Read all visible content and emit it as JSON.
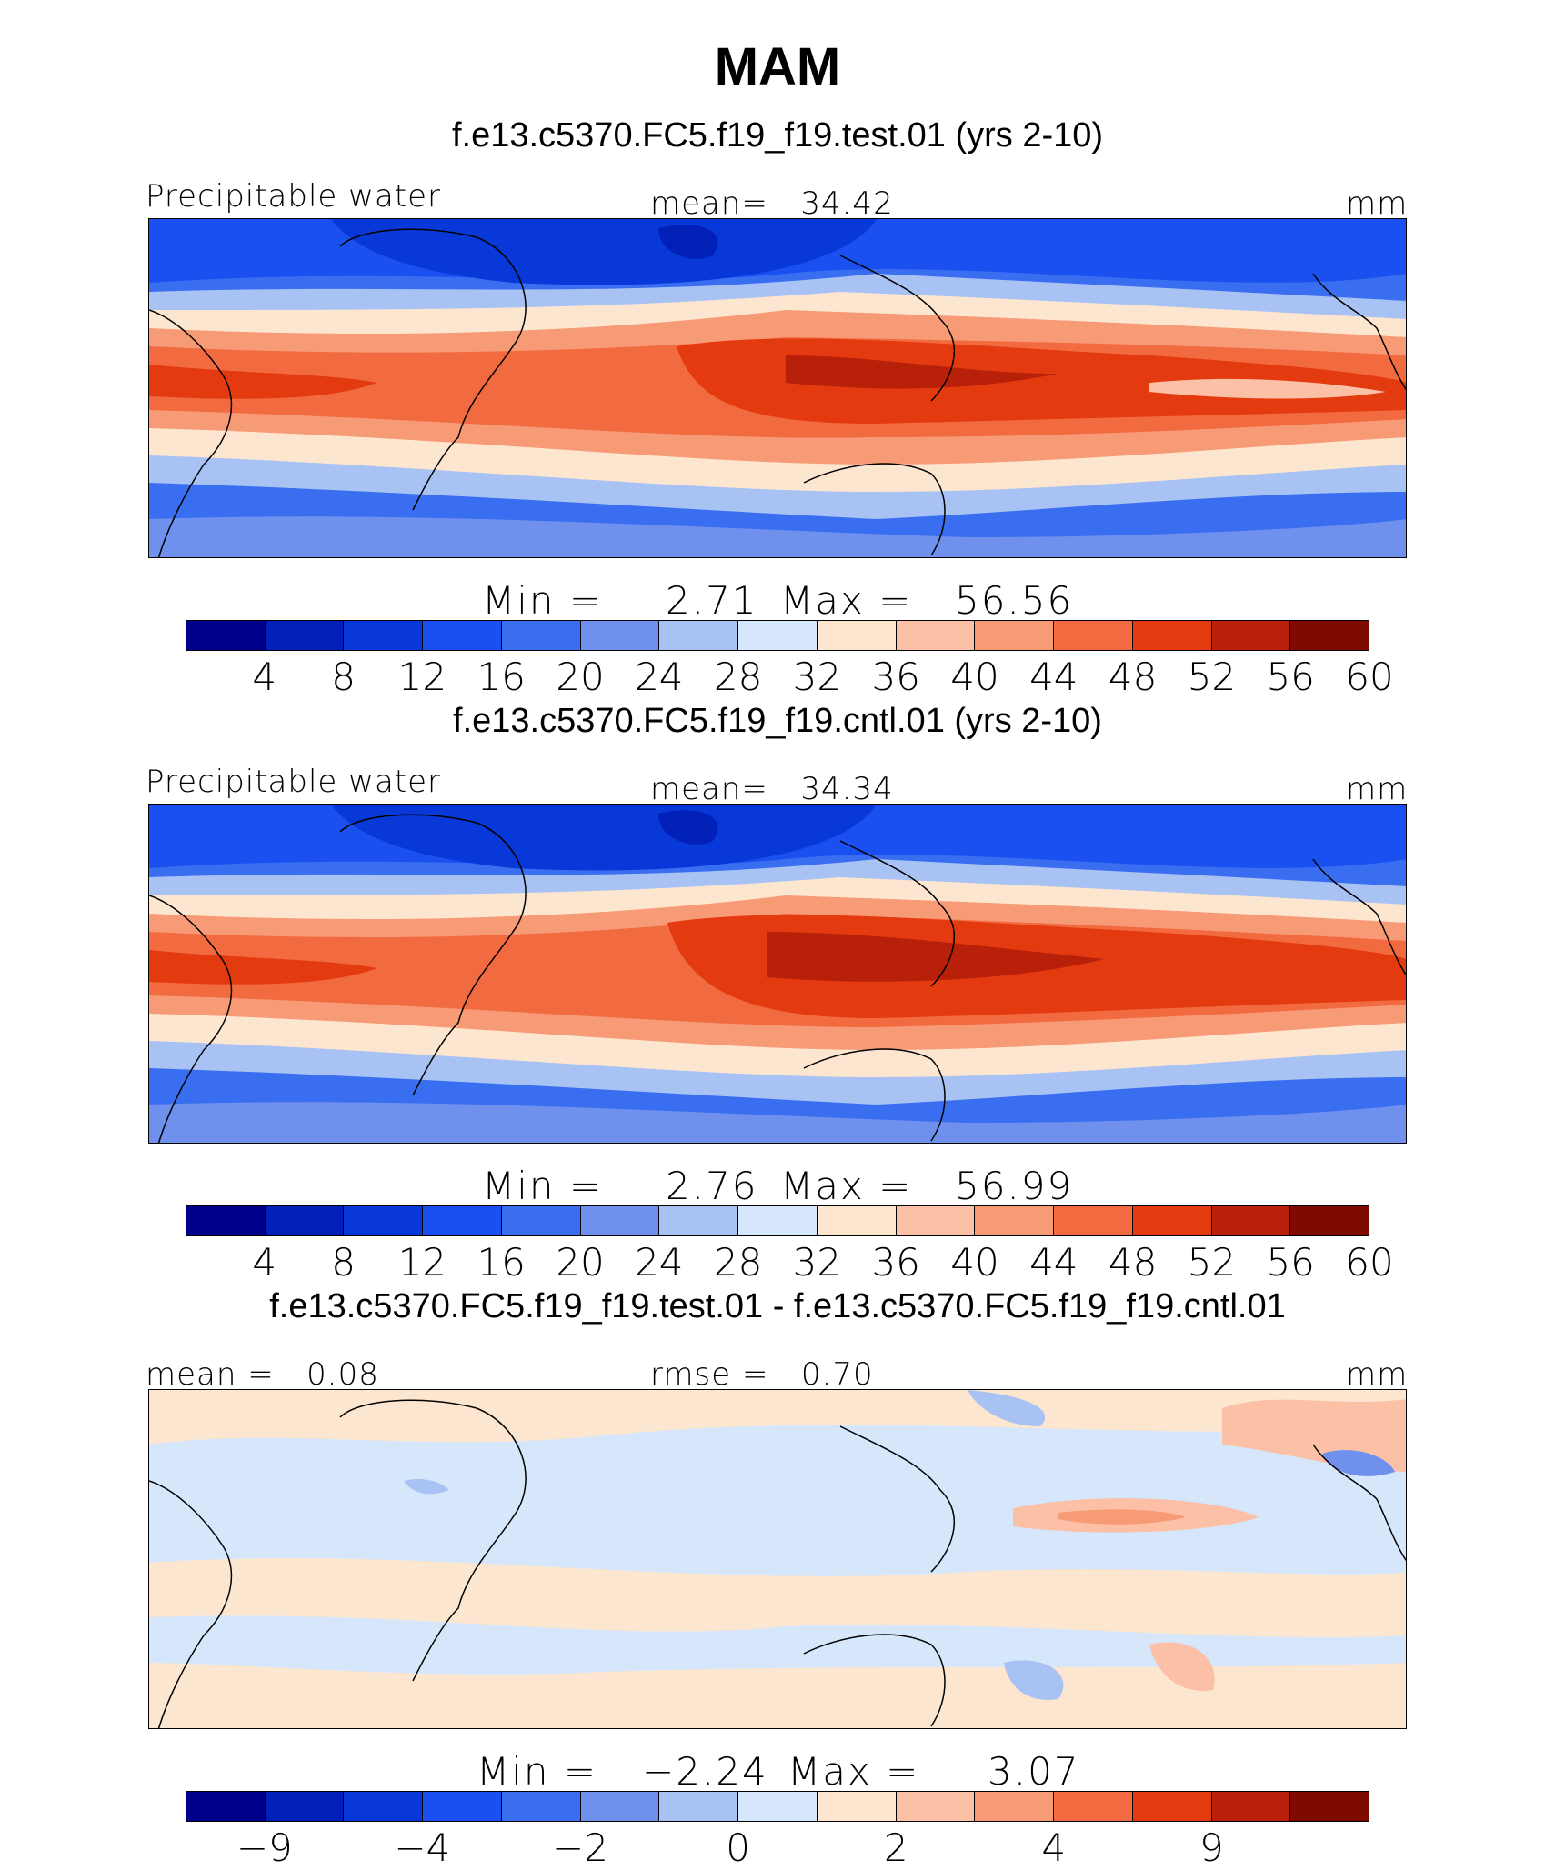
{
  "title": "MAM",
  "colors": {
    "precip_scale": [
      "#00008a",
      "#0020b8",
      "#0838d8",
      "#1a50f0",
      "#3a6ef0",
      "#7090ee",
      "#a8c2f4",
      "#d6e6fb",
      "#fde6d0",
      "#fbc0a6",
      "#f79a76",
      "#f26a40",
      "#e43a10",
      "#b8200a",
      "#7e0a00"
    ],
    "diff_scale": [
      "#00008a",
      "#0020b8",
      "#0838d8",
      "#1a50f0",
      "#3a6ef0",
      "#7090ee",
      "#a8c2f4",
      "#d6e6fb",
      "#fde6d0",
      "#fbc0a6",
      "#f79a76",
      "#f26a40",
      "#e43a10",
      "#b8200a",
      "#7e0a00"
    ]
  },
  "panels": [
    {
      "title": "f.e13.c5370.FC5.f19_f19.test.01 (yrs 2-10)",
      "left_label": "Precipitable water",
      "center_label": "mean=",
      "center_value": "34.42",
      "units": "mm",
      "min_label": "Min =",
      "min_value": "2.71",
      "max_label": "Max =",
      "max_value": "56.56",
      "ticks": [
        "4",
        "8",
        "12",
        "16",
        "20",
        "24",
        "28",
        "32",
        "36",
        "40",
        "44",
        "48",
        "52",
        "56",
        "60"
      ]
    },
    {
      "title": "f.e13.c5370.FC5.f19_f19.cntl.01 (yrs 2-10)",
      "left_label": "Precipitable water",
      "center_label": "mean=",
      "center_value": "34.34",
      "units": "mm",
      "min_label": "Min =",
      "min_value": "2.76",
      "max_label": "Max =",
      "max_value": "56.99",
      "ticks": [
        "4",
        "8",
        "12",
        "16",
        "20",
        "24",
        "28",
        "32",
        "36",
        "40",
        "44",
        "48",
        "52",
        "56",
        "60"
      ]
    },
    {
      "title": "f.e13.c5370.FC5.f19_f19.test.01 - f.e13.c5370.FC5.f19_f19.cntl.01",
      "left_label": "mean =",
      "left_value": "0.08",
      "center_label": "rmse =",
      "center_value": "0.70",
      "units": "mm",
      "min_label": "Min =",
      "min_value": "−2.24",
      "max_label": "Max =",
      "max_value": "3.07",
      "ticks": [
        "−9",
        "−4",
        "−2",
        "0",
        "2",
        "4",
        "9"
      ]
    }
  ],
  "chart_data": [
    {
      "type": "heatmap",
      "title": "f.e13.c5370.FC5.f19_f19.test.01 (yrs 2-10)",
      "variable": "Precipitable water",
      "units": "mm",
      "mean": 34.42,
      "min": 2.71,
      "max": 56.56,
      "contour_levels": [
        4,
        8,
        12,
        16,
        20,
        24,
        28,
        32,
        36,
        40,
        44,
        48,
        52,
        56,
        60
      ]
    },
    {
      "type": "heatmap",
      "title": "f.e13.c5370.FC5.f19_f19.cntl.01 (yrs 2-10)",
      "variable": "Precipitable water",
      "units": "mm",
      "mean": 34.34,
      "min": 2.76,
      "max": 56.99,
      "contour_levels": [
        4,
        8,
        12,
        16,
        20,
        24,
        28,
        32,
        36,
        40,
        44,
        48,
        52,
        56,
        60
      ]
    },
    {
      "type": "heatmap",
      "title": "f.e13.c5370.FC5.f19_f19.test.01 - f.e13.c5370.FC5.f19_f19.cntl.01",
      "units": "mm",
      "mean": 0.08,
      "rmse": 0.7,
      "min": -2.24,
      "max": 3.07,
      "contour_levels": [
        -9,
        -4,
        -2,
        0,
        2,
        4,
        9
      ]
    }
  ]
}
